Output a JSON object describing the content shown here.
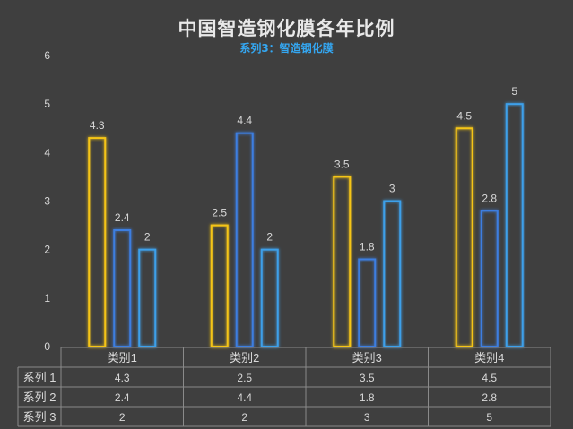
{
  "chart_data": {
    "type": "bar",
    "title": "中国智造钢化膜各年比例",
    "subtitle": "系列3：智造钢化膜",
    "categories": [
      "类别1",
      "类别2",
      "类别3",
      "类别4"
    ],
    "series": [
      {
        "name": "系列1",
        "values": [
          4.3,
          2.5,
          3.5,
          4.5
        ]
      },
      {
        "name": "系列2",
        "values": [
          2.4,
          4.4,
          1.8,
          2.8
        ]
      },
      {
        "name": "系列3",
        "values": [
          2,
          2,
          3,
          5
        ]
      }
    ],
    "yticks": [
      "0",
      "1",
      "2",
      "3",
      "4",
      "5",
      "6"
    ],
    "ylim": [
      0,
      6
    ],
    "grid": false,
    "data_table": {
      "rows": [
        {
          "label": "系列 1",
          "cells": [
            "4.3",
            "2.5",
            "3.5",
            "4.5"
          ]
        },
        {
          "label": "系列 2",
          "cells": [
            "2.4",
            "4.4",
            "1.8",
            "2.8"
          ]
        },
        {
          "label": "系列 3",
          "cells": [
            "2",
            "2",
            "3",
            "5"
          ]
        }
      ]
    },
    "colors": {
      "series1": "#f5c518",
      "series2": "#3c7ee0",
      "series3": "#3ea0ea",
      "background": "#3f3f3f",
      "text": "#d9d9d9",
      "table_line": "#8a8a8a"
    }
  }
}
